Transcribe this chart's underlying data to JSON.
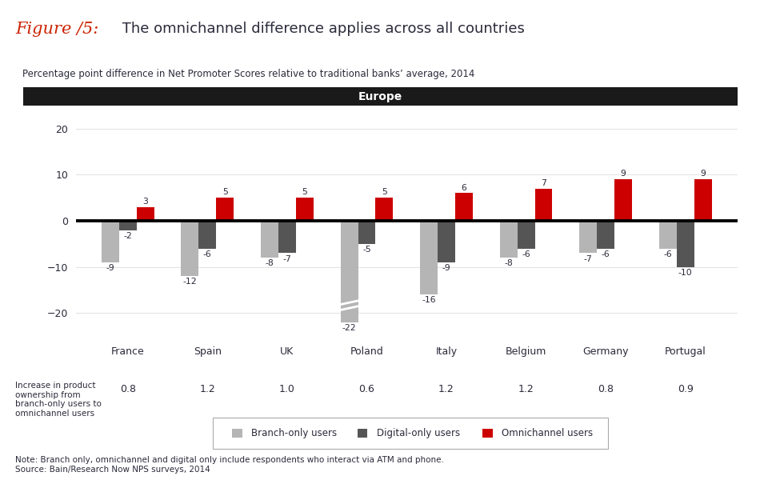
{
  "title_red": "Figure /5:",
  "title_black": " The omnichannel difference applies across all countries",
  "subtitle": "Percentage point difference in Net Promoter Scores relative to traditional banks’ average, 2014",
  "europe_label": "Europe",
  "categories": [
    "France",
    "Spain",
    "UK",
    "Poland",
    "Italy",
    "Belgium",
    "Germany",
    "Portugal"
  ],
  "branch_only": [
    -9,
    -12,
    -8,
    -22,
    -16,
    -8,
    -7,
    -6
  ],
  "digital_only": [
    -2,
    -6,
    -7,
    -5,
    -9,
    -6,
    -6,
    -10
  ],
  "omnichannel": [
    3,
    5,
    5,
    5,
    6,
    7,
    9,
    9
  ],
  "product_ownership": [
    0.8,
    1.2,
    1.0,
    0.6,
    1.2,
    1.2,
    0.8,
    0.9
  ],
  "color_branch": "#b5b5b5",
  "color_digital": "#555555",
  "color_omni": "#cc0000",
  "color_europe_bg": "#1a1a1a",
  "color_europe_text": "#ffffff",
  "ylim_min": -25,
  "ylim_max": 25,
  "yticks": [
    -20,
    -10,
    0,
    10,
    20
  ],
  "note": "Note: Branch only, omnichannel and digital only include respondents who interact via ATM and phone.",
  "source": "Source: Bain/Research Now NPS surveys, 2014",
  "ownership_label": "Increase in product\nownership from\nbranch-only users to\nomnichannel users",
  "legend_branch": "Branch-only users",
  "legend_digital": "Digital-only users",
  "legend_omni": "Omnichannel users",
  "bar_width": 0.22
}
